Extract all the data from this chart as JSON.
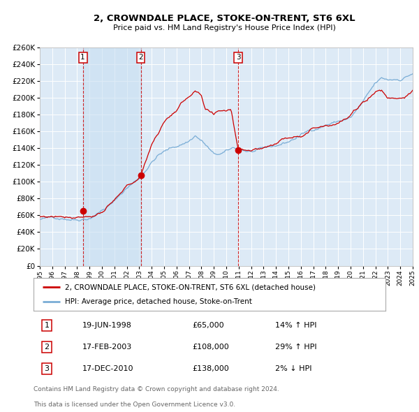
{
  "title": "2, CROWNDALE PLACE, STOKE-ON-TRENT, ST6 6XL",
  "subtitle": "Price paid vs. HM Land Registry's House Price Index (HPI)",
  "legend_line1": "2, CROWNDALE PLACE, STOKE-ON-TRENT, ST6 6XL (detached house)",
  "legend_line2": "HPI: Average price, detached house, Stoke-on-Trent",
  "footer_line1": "Contains HM Land Registry data © Crown copyright and database right 2024.",
  "footer_line2": "This data is licensed under the Open Government Licence v3.0.",
  "transactions": [
    {
      "num": 1,
      "date": "19-JUN-1998",
      "price": 65000,
      "pct": "14%",
      "dir": "↑",
      "year": 1998.46
    },
    {
      "num": 2,
      "date": "17-FEB-2003",
      "price": 108000,
      "pct": "29%",
      "dir": "↑",
      "year": 2003.12
    },
    {
      "num": 3,
      "date": "17-DEC-2010",
      "price": 138000,
      "pct": "2%",
      "dir": "↓",
      "year": 2010.96
    }
  ],
  "hpi_color": "#7aadd6",
  "price_color": "#cc0000",
  "bg_color": "#ddeaf6",
  "grid_color": "#ffffff",
  "vline_color": "#cc0000",
  "dot_color": "#cc0000",
  "ylim": [
    0,
    260000
  ],
  "ytick_step": 20000,
  "start_year": 1995,
  "end_year": 2025,
  "hpi_anchors": {
    "1995.0": 55000,
    "1996.0": 56000,
    "1997.0": 57500,
    "1998.0": 58000,
    "1999.0": 62000,
    "2000.0": 72000,
    "2001.0": 82000,
    "2002.0": 98000,
    "2003.0": 110000,
    "2004.0": 130000,
    "2004.5": 138000,
    "2005.0": 142000,
    "2006.0": 148000,
    "2007.0": 155000,
    "2007.5": 162000,
    "2008.0": 156000,
    "2008.5": 148000,
    "2009.0": 138000,
    "2009.5": 138000,
    "2010.0": 140000,
    "2010.5": 143000,
    "2011.0": 143000,
    "2011.5": 141000,
    "2012.0": 140000,
    "2013.0": 140000,
    "2014.0": 143000,
    "2015.0": 148000,
    "2016.0": 156000,
    "2017.0": 163000,
    "2018.0": 170000,
    "2019.0": 174000,
    "2020.0": 178000,
    "2021.0": 195000,
    "2022.0": 215000,
    "2022.5": 220000,
    "2023.0": 218000,
    "2024.0": 220000,
    "2025.0": 228000
  },
  "price_anchors": {
    "1995.0": 58000,
    "1996.0": 59000,
    "1997.0": 61000,
    "1998.0": 63000,
    "1998.46": 65000,
    "1999.0": 65000,
    "2000.0": 71000,
    "2001.0": 82000,
    "2002.0": 97000,
    "2003.0": 107000,
    "2003.12": 108000,
    "2004.0": 148000,
    "2005.0": 175000,
    "2006.0": 190000,
    "2007.0": 207000,
    "2007.5": 213000,
    "2008.0": 205000,
    "2008.3": 188000,
    "2008.8": 182000,
    "2009.0": 178000,
    "2009.5": 182000,
    "2010.0": 183000,
    "2010.4": 185000,
    "2010.96": 138000,
    "2011.0": 138500,
    "2011.5": 140000,
    "2012.0": 140000,
    "2013.0": 143000,
    "2014.0": 150000,
    "2015.0": 157000,
    "2016.0": 163000,
    "2017.0": 172000,
    "2018.0": 178000,
    "2019.0": 183000,
    "2020.0": 190000,
    "2021.0": 205000,
    "2022.0": 220000,
    "2022.5": 222000,
    "2023.0": 213000,
    "2024.0": 215000,
    "2025.0": 222000
  }
}
